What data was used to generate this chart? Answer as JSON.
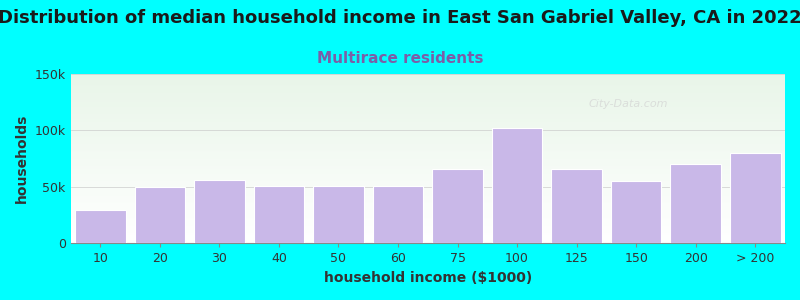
{
  "title": "Distribution of median household income in East San Gabriel Valley, CA in 2022",
  "subtitle": "Multirace residents",
  "xlabel": "household income ($1000)",
  "ylabel": "households",
  "background_color": "#00FFFF",
  "bar_color": "#c9b8e8",
  "bar_edge_color": "#ffffff",
  "categories": [
    "10",
    "20",
    "30",
    "40",
    "50",
    "60",
    "75",
    "100",
    "125",
    "150",
    "200",
    "> 200"
  ],
  "values": [
    30000,
    50000,
    56000,
    51000,
    51000,
    51000,
    66000,
    102000,
    66000,
    55000,
    70000,
    80000
  ],
  "ylim": [
    0,
    150000
  ],
  "ytick_labels": [
    "0",
    "50k",
    "100k",
    "150k"
  ],
  "title_fontsize": 13,
  "subtitle_fontsize": 11,
  "axis_label_fontsize": 10,
  "tick_fontsize": 9,
  "title_color": "#1a1a1a",
  "subtitle_color": "#7b5ea7",
  "watermark": "City-Data.com"
}
